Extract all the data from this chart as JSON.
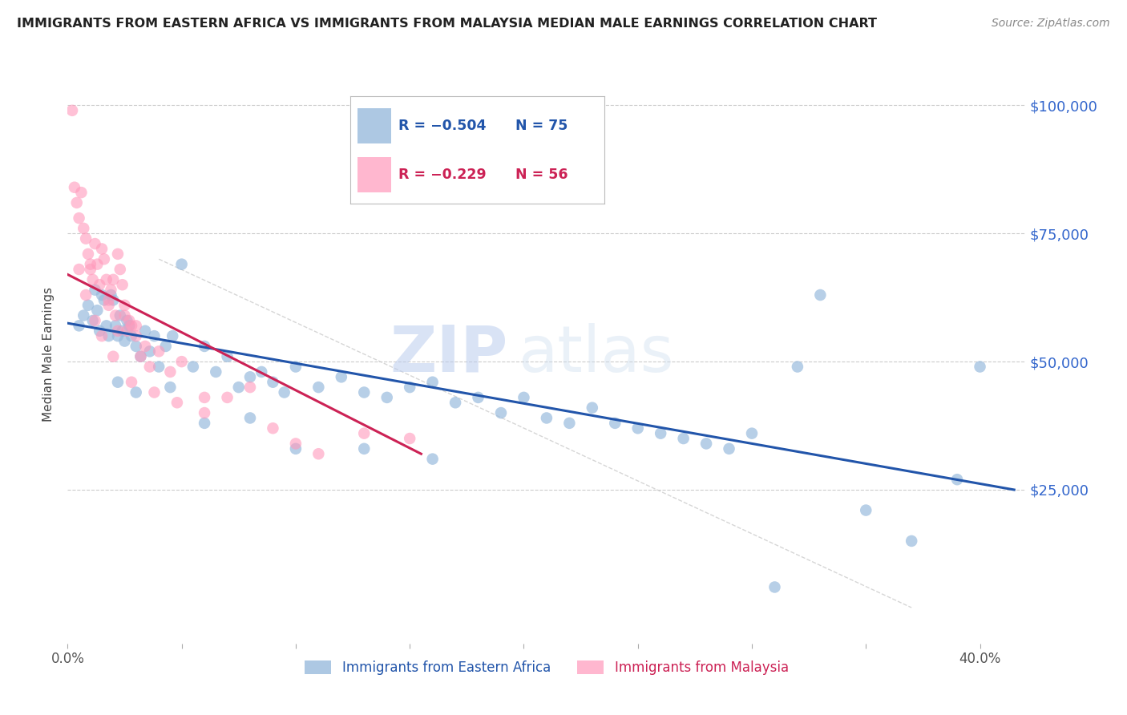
{
  "title": "IMMIGRANTS FROM EASTERN AFRICA VS IMMIGRANTS FROM MALAYSIA MEDIAN MALE EARNINGS CORRELATION CHART",
  "source": "Source: ZipAtlas.com",
  "ylabel": "Median Male Earnings",
  "y_ticks": [
    0,
    25000,
    50000,
    75000,
    100000
  ],
  "y_tick_labels": [
    "",
    "$25,000",
    "$50,000",
    "$75,000",
    "$100,000"
  ],
  "xlim": [
    0.0,
    0.42
  ],
  "ylim": [
    -5000,
    108000
  ],
  "legend_blue_r": "-0.504",
  "legend_blue_n": "75",
  "legend_pink_r": "-0.229",
  "legend_pink_n": "56",
  "blue_color": "#99BBDD",
  "pink_color": "#FF99BB",
  "blue_line_color": "#2255AA",
  "pink_line_color": "#CC2255",
  "watermark_zip": "ZIP",
  "watermark_atlas": "atlas",
  "blue_scatter_x": [
    0.005,
    0.007,
    0.009,
    0.011,
    0.012,
    0.013,
    0.014,
    0.015,
    0.016,
    0.017,
    0.018,
    0.019,
    0.02,
    0.021,
    0.022,
    0.023,
    0.024,
    0.025,
    0.026,
    0.027,
    0.028,
    0.03,
    0.032,
    0.034,
    0.036,
    0.038,
    0.04,
    0.043,
    0.046,
    0.05,
    0.055,
    0.06,
    0.065,
    0.07,
    0.075,
    0.08,
    0.085,
    0.09,
    0.095,
    0.1,
    0.11,
    0.12,
    0.13,
    0.14,
    0.15,
    0.16,
    0.17,
    0.18,
    0.19,
    0.2,
    0.21,
    0.22,
    0.23,
    0.24,
    0.25,
    0.26,
    0.27,
    0.28,
    0.29,
    0.3,
    0.31,
    0.32,
    0.33,
    0.35,
    0.37,
    0.39,
    0.4,
    0.022,
    0.03,
    0.045,
    0.06,
    0.08,
    0.1,
    0.13,
    0.16
  ],
  "blue_scatter_y": [
    57000,
    59000,
    61000,
    58000,
    64000,
    60000,
    56000,
    63000,
    62000,
    57000,
    55000,
    63000,
    62000,
    57000,
    55000,
    59000,
    56000,
    54000,
    58000,
    57000,
    55000,
    53000,
    51000,
    56000,
    52000,
    55000,
    49000,
    53000,
    55000,
    69000,
    49000,
    53000,
    48000,
    51000,
    45000,
    47000,
    48000,
    46000,
    44000,
    49000,
    45000,
    47000,
    44000,
    43000,
    45000,
    46000,
    42000,
    43000,
    40000,
    43000,
    39000,
    38000,
    41000,
    38000,
    37000,
    36000,
    35000,
    34000,
    33000,
    36000,
    6000,
    49000,
    63000,
    21000,
    15000,
    27000,
    49000,
    46000,
    44000,
    45000,
    38000,
    39000,
    33000,
    33000,
    31000
  ],
  "pink_scatter_x": [
    0.002,
    0.003,
    0.004,
    0.005,
    0.006,
    0.007,
    0.008,
    0.009,
    0.01,
    0.011,
    0.012,
    0.013,
    0.014,
    0.015,
    0.016,
    0.017,
    0.018,
    0.019,
    0.02,
    0.021,
    0.022,
    0.023,
    0.024,
    0.025,
    0.026,
    0.027,
    0.028,
    0.03,
    0.032,
    0.034,
    0.036,
    0.04,
    0.045,
    0.05,
    0.06,
    0.07,
    0.08,
    0.09,
    0.1,
    0.11,
    0.13,
    0.15,
    0.005,
    0.008,
    0.012,
    0.015,
    0.02,
    0.025,
    0.03,
    0.01,
    0.018,
    0.022,
    0.028,
    0.038,
    0.048,
    0.06
  ],
  "pink_scatter_y": [
    99000,
    84000,
    81000,
    78000,
    83000,
    76000,
    74000,
    71000,
    69000,
    66000,
    73000,
    69000,
    65000,
    72000,
    70000,
    66000,
    61000,
    64000,
    66000,
    59000,
    71000,
    68000,
    65000,
    59000,
    56000,
    58000,
    57000,
    55000,
    51000,
    53000,
    49000,
    52000,
    48000,
    50000,
    40000,
    43000,
    45000,
    37000,
    34000,
    32000,
    36000,
    35000,
    68000,
    63000,
    58000,
    55000,
    51000,
    61000,
    57000,
    68000,
    62000,
    56000,
    46000,
    44000,
    42000,
    43000
  ]
}
